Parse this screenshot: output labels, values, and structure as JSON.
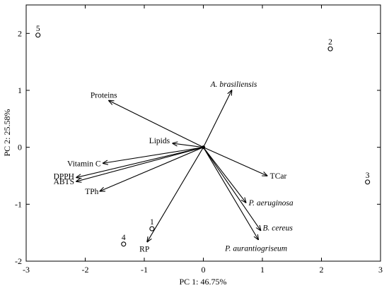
{
  "chart_data": {
    "type": "scatter",
    "title": "",
    "xlabel": "PC 1: 46.75%",
    "ylabel": "PC 2: 25.58%",
    "xlim": [
      -3,
      3
    ],
    "ylim": [
      -2,
      2.5
    ],
    "xticks": [
      "-3",
      "-2",
      "-1",
      "0",
      "1",
      "2",
      "3"
    ],
    "yticks": [
      "-2",
      "-1",
      "0",
      "1",
      "2"
    ],
    "grid": false,
    "origin": [
      0,
      0
    ],
    "points": [
      {
        "label": "1",
        "x": -0.87,
        "y": -1.43
      },
      {
        "label": "2",
        "x": 2.15,
        "y": 1.73
      },
      {
        "label": "3",
        "x": 2.78,
        "y": -0.61
      },
      {
        "label": "4",
        "x": -1.35,
        "y": -1.7
      },
      {
        "label": "5",
        "x": -2.8,
        "y": 1.97
      }
    ],
    "vectors": [
      {
        "label": "A. brasiliensis",
        "x": 0.48,
        "y": 1.0,
        "italic": true
      },
      {
        "label": "Proteins",
        "x": -1.6,
        "y": 0.82,
        "italic": false
      },
      {
        "label": "Lipids",
        "x": -0.52,
        "y": 0.07,
        "italic": false
      },
      {
        "label": "Vitamin C",
        "x": -1.7,
        "y": -0.28,
        "italic": false
      },
      {
        "label": "DPPH",
        "x": -2.15,
        "y": -0.53,
        "italic": false
      },
      {
        "label": "ABTS",
        "x": -2.15,
        "y": -0.6,
        "italic": false
      },
      {
        "label": "TPh",
        "x": -1.75,
        "y": -0.77,
        "italic": false
      },
      {
        "label": "RP",
        "x": -0.95,
        "y": -1.66,
        "italic": false
      },
      {
        "label": "TCar",
        "x": 1.08,
        "y": -0.5,
        "italic": false
      },
      {
        "label": "P. aeruginosa",
        "x": 0.72,
        "y": -0.97,
        "italic": true
      },
      {
        "label": "B. cereus",
        "x": 0.97,
        "y": -1.46,
        "italic": true
      },
      {
        "label": "P. aurantiogriseum",
        "x": 0.93,
        "y": -1.62,
        "italic": true
      }
    ]
  }
}
